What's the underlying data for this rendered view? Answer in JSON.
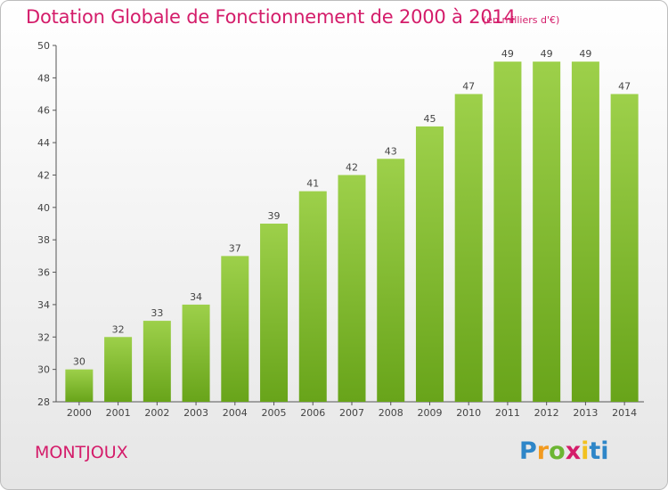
{
  "title": "Dotation Globale de Fonctionnement de 2000 à 2014",
  "unit": "(en milliers d'€)",
  "commune": "MONTJOUX",
  "brand": "Proxiti",
  "colors": {
    "title": "#d41c6a",
    "bar_light": "#9dd04a",
    "bar_dark": "#68a41a",
    "axis": "#555555"
  },
  "chart_data": {
    "type": "bar",
    "title": "Dotation Globale de Fonctionnement de 2000 à 2014",
    "ylabel": "(en milliers d'€)",
    "xlabel": "",
    "categories": [
      "2000",
      "2001",
      "2002",
      "2003",
      "2004",
      "2005",
      "2006",
      "2007",
      "2008",
      "2009",
      "2010",
      "2011",
      "2012",
      "2013",
      "2014"
    ],
    "values": [
      30,
      32,
      33,
      34,
      37,
      39,
      41,
      42,
      43,
      45,
      47,
      49,
      49,
      49,
      47
    ],
    "ylim": [
      28,
      50
    ],
    "yticks": [
      28,
      30,
      32,
      34,
      36,
      38,
      40,
      42,
      44,
      46,
      48,
      50
    ],
    "grid": false,
    "data_labels": true
  }
}
